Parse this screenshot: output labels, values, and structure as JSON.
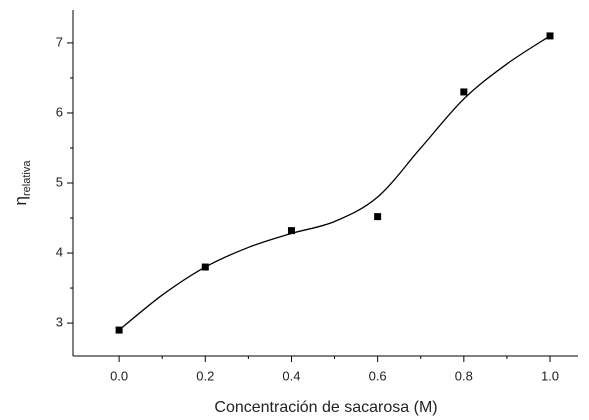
{
  "chart_data": {
    "type": "scatter",
    "x_label": "Concentración de sacarosa (M)",
    "y_label": "η",
    "y_label_sub": "relativa",
    "series": [
      {
        "kind": "points",
        "color": "#000000",
        "x": [
          0,
          0.2,
          0.4,
          0.6,
          0.8,
          1.0
        ],
        "values": [
          2.9,
          3.8,
          4.32,
          4.52,
          6.3,
          7.1
        ]
      },
      {
        "kind": "curve",
        "color": "#000000",
        "x": [
          0,
          0.1,
          0.2,
          0.3,
          0.4,
          0.5,
          0.6,
          0.7,
          0.8,
          0.9,
          1.0
        ],
        "values": [
          2.9,
          3.4,
          3.8,
          4.08,
          4.28,
          4.45,
          4.8,
          5.5,
          6.2,
          6.7,
          7.1
        ]
      }
    ],
    "xlim": [
      -0.107,
      1.058
    ],
    "ylim": [
      2.53,
      7.47
    ],
    "xticks": [
      {
        "value": 0,
        "label": "0.0"
      },
      {
        "value": 0.2,
        "label": "0.2"
      },
      {
        "value": 0.4,
        "label": "0.4"
      },
      {
        "value": 0.6,
        "label": "0.6"
      },
      {
        "value": 0.8,
        "label": "0.8"
      },
      {
        "value": 1.0,
        "label": "1.0"
      }
    ],
    "yticks": [
      3,
      4,
      5,
      6,
      7
    ]
  }
}
